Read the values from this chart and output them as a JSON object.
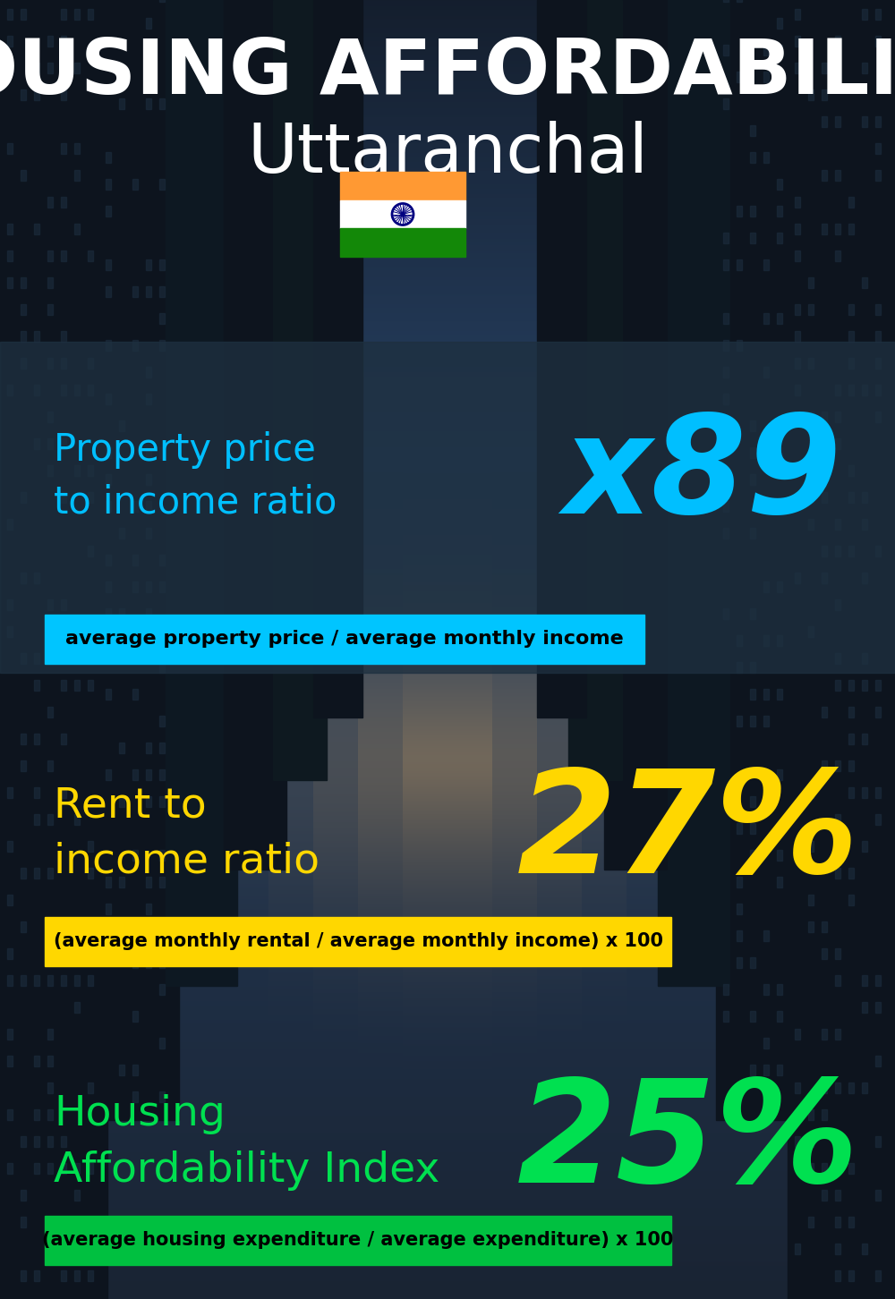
{
  "title_line1": "HOUSING AFFORDABILITY",
  "title_line2": "Uttaranchal",
  "section1_label": "Property price\nto income ratio",
  "section1_value": "x89",
  "section1_sublabel": "average property price / average monthly income",
  "section1_label_color": "#00BFFF",
  "section1_value_color": "#00BFFF",
  "section1_bg_color": "#00C5FF",
  "section2_label": "Rent to\nincome ratio",
  "section2_value": "27%",
  "section2_sublabel": "(average monthly rental / average monthly income) x 100",
  "section2_label_color": "#FFD700",
  "section2_value_color": "#FFD700",
  "section2_bg_color": "#FFD700",
  "section3_label": "Housing\nAffordability Index",
  "section3_value": "25%",
  "section3_sublabel": "(average housing expenditure / average expenditure) x 100",
  "section3_label_color": "#00E050",
  "section3_value_color": "#00E050",
  "section3_bg_color": "#00C040",
  "title_color": "#FFFFFF",
  "subtitle_color": "#FFFFFF",
  "sky_color_top": "#1a2535",
  "sky_color_mid": "#2e4a6e",
  "sky_color_bottom": "#c8a060",
  "building_dark": "#0d141e",
  "building_mid": "#111a26",
  "panel1_color": "#1e3040",
  "panel1_alpha": 0.78
}
